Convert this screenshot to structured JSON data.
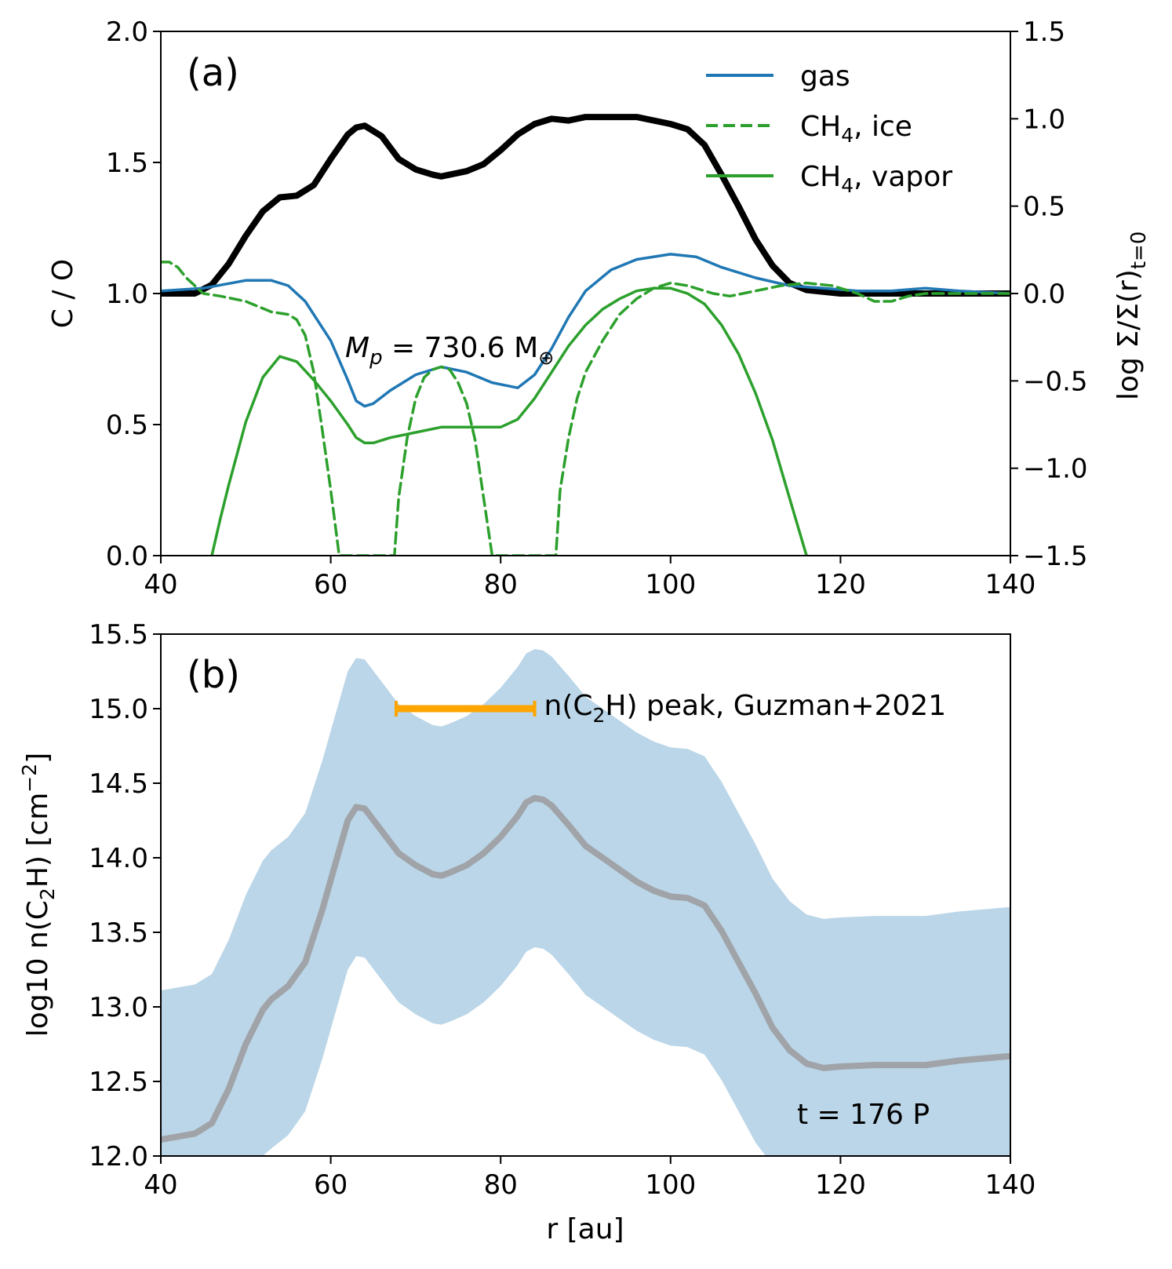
{
  "chart_data": [
    {
      "type": "line",
      "panel_label": "(a)",
      "xlim": [
        40,
        140
      ],
      "ylim": [
        0,
        2.0
      ],
      "y2lim": [
        -1.5,
        1.5
      ],
      "x_ticks": [
        "40",
        "60",
        "80",
        "100",
        "120",
        "140"
      ],
      "y_ticks": [
        "0.0",
        "0.5",
        "1.0",
        "1.5",
        "2.0"
      ],
      "y2_ticks": [
        "−1.5",
        "−1.0",
        "−0.5",
        "0.0",
        "0.5",
        "1.0",
        "1.5"
      ],
      "ylabel": "C / O",
      "y2label": "log Σ/Σ(r)",
      "y2label_sub": "t=0",
      "annotation": {
        "text": "M",
        "sub": "p",
        "rest": " = 730.6 M",
        "sym": "⊕"
      },
      "legend": [
        {
          "label": "gas",
          "sub": "",
          "rest": "",
          "style": "solid",
          "color": "#1f77b4"
        },
        {
          "label": "CH",
          "sub": "4",
          "rest": ", ice",
          "style": "dashed",
          "color": "#2ca02c"
        },
        {
          "label": "CH",
          "sub": "4",
          "rest": ", vapor",
          "style": "solid",
          "color": "#2ca02c"
        }
      ],
      "series": [
        {
          "name": "gas",
          "axis": "left",
          "color": "#1f77b4",
          "style": "solid",
          "x": [
            40,
            45,
            50,
            53,
            55,
            57,
            60,
            62,
            63,
            64,
            65,
            67,
            70,
            73,
            76,
            79,
            82,
            84,
            86,
            88,
            90,
            93,
            96,
            100,
            103,
            106,
            110,
            114,
            118,
            122,
            126,
            130,
            134,
            140
          ],
          "y": [
            1.01,
            1.02,
            1.05,
            1.05,
            1.03,
            0.97,
            0.82,
            0.67,
            0.59,
            0.57,
            0.58,
            0.63,
            0.69,
            0.72,
            0.7,
            0.66,
            0.64,
            0.69,
            0.79,
            0.91,
            1.01,
            1.09,
            1.13,
            1.15,
            1.14,
            1.1,
            1.06,
            1.03,
            1.02,
            1.01,
            1.01,
            1.02,
            1.01,
            1.0
          ]
        },
        {
          "name": "CH4, ice",
          "axis": "left",
          "color": "#2ca02c",
          "style": "dashed",
          "x": [
            40,
            41,
            42,
            43,
            45,
            47,
            50,
            53,
            55,
            56,
            57,
            58,
            59,
            60,
            61,
            67.5,
            68,
            69,
            70,
            71,
            72,
            73,
            74,
            75,
            76,
            77,
            78,
            79,
            86.5,
            87,
            88,
            89,
            90,
            92,
            94,
            96,
            98,
            100,
            102,
            105,
            107,
            110,
            113,
            116,
            119,
            122,
            124,
            126,
            128,
            130,
            134,
            140
          ],
          "y": [
            1.12,
            1.12,
            1.1,
            1.06,
            1.0,
            0.99,
            0.97,
            0.93,
            0.92,
            0.9,
            0.84,
            0.7,
            0.48,
            0.25,
            0.0,
            0.0,
            0.22,
            0.45,
            0.6,
            0.68,
            0.71,
            0.72,
            0.71,
            0.66,
            0.58,
            0.44,
            0.22,
            0.0,
            0.0,
            0.25,
            0.45,
            0.6,
            0.7,
            0.82,
            0.92,
            0.98,
            1.02,
            1.04,
            1.03,
            1.0,
            0.99,
            1.01,
            1.03,
            1.04,
            1.03,
            1.0,
            0.97,
            0.97,
            0.99,
            1.0,
            1.0,
            1.0
          ]
        },
        {
          "name": "CH4, vapor",
          "axis": "left",
          "color": "#2ca02c",
          "style": "solid",
          "x": [
            46,
            47,
            48,
            50,
            52,
            54,
            56,
            58,
            60,
            62,
            63,
            64,
            65,
            67,
            70,
            73,
            76,
            80,
            82,
            84,
            86,
            88,
            90,
            92,
            94,
            96,
            98,
            100,
            102,
            104,
            106,
            108,
            110,
            112,
            114,
            116
          ],
          "y": [
            0.0,
            0.14,
            0.27,
            0.51,
            0.68,
            0.76,
            0.74,
            0.67,
            0.59,
            0.5,
            0.45,
            0.43,
            0.43,
            0.45,
            0.47,
            0.49,
            0.49,
            0.49,
            0.52,
            0.6,
            0.7,
            0.8,
            0.88,
            0.94,
            0.98,
            1.01,
            1.02,
            1.02,
            1.0,
            0.96,
            0.88,
            0.77,
            0.62,
            0.44,
            0.22,
            0.0
          ]
        },
        {
          "name": "log Σ/Σ(r)t=0",
          "axis": "right",
          "color": "#000000",
          "style": "solid",
          "x": [
            40,
            42,
            44,
            46,
            48,
            50,
            52,
            54,
            56,
            58,
            60,
            62,
            63,
            64,
            66,
            68,
            70,
            72,
            73,
            74,
            76,
            78,
            80,
            82,
            84,
            86,
            88,
            90,
            92,
            96,
            100,
            102,
            104,
            106,
            108,
            110,
            112,
            114,
            116,
            118,
            120,
            124,
            130,
            140
          ],
          "y": [
            0.0,
            0.0,
            0.0,
            0.05,
            0.17,
            0.33,
            0.47,
            0.55,
            0.56,
            0.62,
            0.77,
            0.91,
            0.95,
            0.96,
            0.9,
            0.77,
            0.71,
            0.68,
            0.67,
            0.68,
            0.7,
            0.74,
            0.82,
            0.91,
            0.97,
            1.0,
            0.99,
            1.01,
            1.01,
            1.01,
            0.97,
            0.94,
            0.85,
            0.68,
            0.5,
            0.31,
            0.16,
            0.06,
            0.02,
            0.01,
            0.0,
            0.0,
            0.0,
            0.0
          ]
        }
      ]
    },
    {
      "type": "area",
      "panel_label": "(b)",
      "xlim": [
        40,
        140
      ],
      "ylim": [
        12.0,
        15.5
      ],
      "x_ticks": [
        "40",
        "60",
        "80",
        "100",
        "120",
        "140"
      ],
      "y_ticks": [
        "12.0",
        "12.5",
        "13.0",
        "13.5",
        "14.0",
        "14.5",
        "15.0",
        "15.5"
      ],
      "xlabel": "r [au]",
      "ylabel": "log10 n(C",
      "ylabel_sub": "2",
      "ylabel_rest": "H) [cm",
      "ylabel_sup": "−2",
      "ylabel_end": "]",
      "annotation": "t = 176 P",
      "errorbar": {
        "label": "n(C",
        "sub": "2",
        "rest": "H) peak, Guzman+2021",
        "xmin": 67.7,
        "xmax": 84,
        "y": 15.0,
        "color": "#ffa500"
      },
      "band_color": "#1f77b4",
      "series": [
        {
          "name": "median",
          "color": "#a0a3a8",
          "x": [
            40,
            42,
            44,
            46,
            48,
            50,
            52,
            53,
            55,
            57,
            59,
            61,
            62,
            63,
            64,
            66,
            68,
            70,
            72,
            73,
            74,
            76,
            78,
            80,
            82,
            83,
            84,
            85,
            86,
            88,
            90,
            92,
            94,
            96,
            98,
            100,
            102,
            104,
            106,
            108,
            110,
            112,
            114,
            116,
            118,
            120,
            124,
            130,
            134,
            140
          ],
          "y": [
            12.11,
            12.13,
            12.15,
            12.22,
            12.45,
            12.75,
            12.98,
            13.05,
            13.14,
            13.3,
            13.65,
            14.05,
            14.25,
            14.34,
            14.33,
            14.18,
            14.03,
            13.95,
            13.89,
            13.88,
            13.9,
            13.95,
            14.03,
            14.14,
            14.28,
            14.37,
            14.4,
            14.39,
            14.35,
            14.22,
            14.08,
            14.0,
            13.92,
            13.84,
            13.78,
            13.74,
            13.73,
            13.68,
            13.51,
            13.3,
            13.09,
            12.86,
            12.71,
            12.62,
            12.59,
            12.6,
            12.61,
            12.61,
            12.64,
            12.67
          ]
        },
        {
          "name": "upper",
          "color": "#1f77b4",
          "x": [
            40,
            42,
            44,
            46,
            48,
            50,
            52,
            53,
            55,
            57,
            59,
            61,
            62,
            63,
            64,
            66,
            68,
            70,
            72,
            73,
            74,
            76,
            78,
            80,
            82,
            83,
            84,
            85,
            86,
            88,
            90,
            92,
            94,
            96,
            98,
            100,
            102,
            104,
            106,
            108,
            110,
            112,
            114,
            116,
            118,
            120,
            124,
            130,
            134,
            140
          ],
          "y": [
            13.11,
            13.13,
            13.15,
            13.22,
            13.45,
            13.75,
            13.98,
            14.05,
            14.14,
            14.3,
            14.65,
            15.05,
            15.25,
            15.34,
            15.33,
            15.18,
            15.03,
            14.95,
            14.89,
            14.88,
            14.9,
            14.95,
            15.03,
            15.14,
            15.28,
            15.37,
            15.4,
            15.39,
            15.35,
            15.22,
            15.08,
            15.0,
            14.92,
            14.84,
            14.78,
            14.74,
            14.73,
            14.68,
            14.51,
            14.3,
            14.09,
            13.86,
            13.71,
            13.62,
            13.59,
            13.6,
            13.61,
            13.61,
            13.64,
            13.67
          ]
        },
        {
          "name": "lower",
          "color": "#1f77b4",
          "x": [
            52,
            53,
            55,
            57,
            59,
            61,
            62,
            63,
            64,
            66,
            68,
            70,
            72,
            73,
            74,
            76,
            78,
            80,
            82,
            83,
            84,
            85,
            86,
            88,
            90,
            92,
            94,
            96,
            98,
            100,
            102,
            104,
            106,
            108,
            110,
            111.2
          ],
          "y": [
            12.0,
            12.05,
            12.14,
            12.3,
            12.65,
            13.05,
            13.25,
            13.34,
            13.33,
            13.18,
            13.03,
            12.95,
            12.89,
            12.88,
            12.9,
            12.95,
            13.03,
            13.14,
            13.28,
            13.37,
            13.4,
            13.39,
            13.35,
            13.22,
            13.08,
            13.0,
            12.92,
            12.84,
            12.78,
            12.74,
            12.73,
            12.68,
            12.51,
            12.3,
            12.09,
            12.0
          ]
        }
      ]
    }
  ]
}
